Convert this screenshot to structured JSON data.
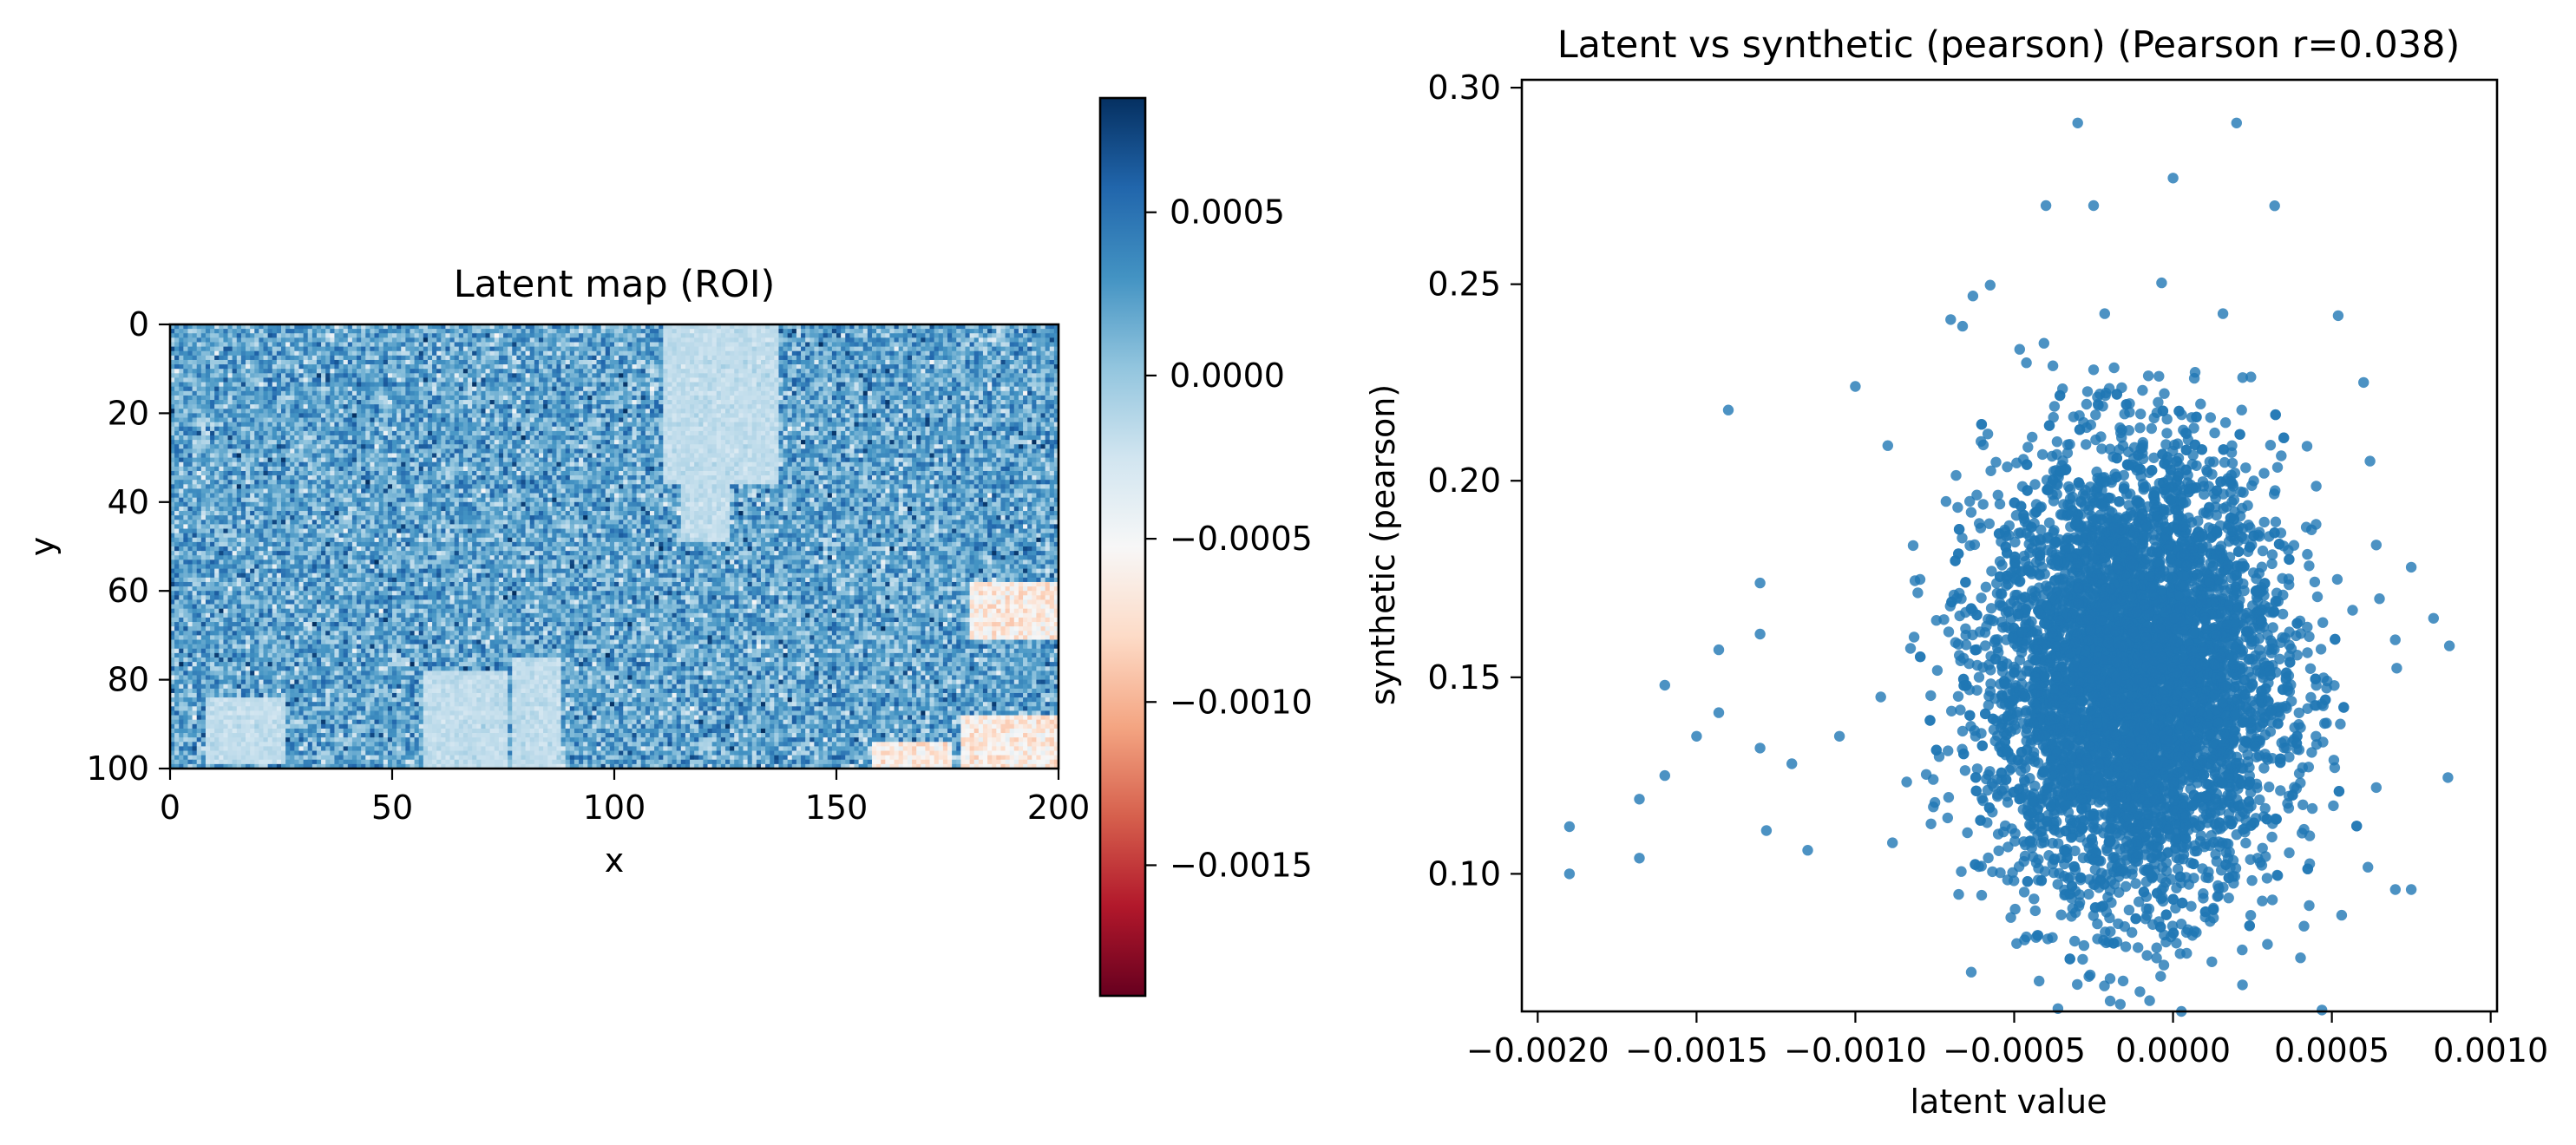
{
  "chart_data": [
    {
      "type": "heatmap",
      "title": "Latent map (ROI)",
      "xlabel": "x",
      "ylabel": "y",
      "xlim": [
        0,
        200
      ],
      "ylim": [
        100,
        0
      ],
      "xticks": [
        "0",
        "50",
        "100",
        "150",
        "200"
      ],
      "yticks": [
        "0",
        "20",
        "40",
        "60",
        "80",
        "100"
      ],
      "grid_size": [
        200,
        100
      ],
      "colormap": "RdBu",
      "value_range": [
        -0.0019,
        0.00085
      ],
      "typical_value": 0.0002,
      "colorbar_ticks": [
        "0.0005",
        "0.0000",
        "−0.0005",
        "−0.0010",
        "−0.0015"
      ],
      "regions": [
        {
          "kind": "near_zero",
          "x": [
            111,
            136
          ],
          "y": [
            0,
            35
          ]
        },
        {
          "kind": "near_zero",
          "x": [
            115,
            125
          ],
          "y": [
            28,
            48
          ]
        },
        {
          "kind": "near_zero",
          "x": [
            77,
            87
          ],
          "y": [
            75,
            100
          ]
        },
        {
          "kind": "near_zero",
          "x": [
            57,
            75
          ],
          "y": [
            78,
            100
          ]
        },
        {
          "kind": "near_zero",
          "x": [
            8,
            25
          ],
          "y": [
            84,
            98
          ]
        },
        {
          "kind": "negative",
          "x": [
            180,
            200
          ],
          "y": [
            58,
            70
          ]
        },
        {
          "kind": "negative",
          "x": [
            178,
            200
          ],
          "y": [
            88,
            100
          ]
        },
        {
          "kind": "negative",
          "x": [
            158,
            175
          ],
          "y": [
            94,
            100
          ]
        }
      ]
    },
    {
      "type": "scatter",
      "title": "Latent vs synthetic (pearson) (Pearson r=0.038)",
      "xlabel": "latent value",
      "ylabel": "synthetic (pearson)",
      "xlim": [
        -0.00205,
        0.00102
      ],
      "ylim": [
        0.065,
        0.302
      ],
      "xticks": [
        "−0.0020",
        "−0.0015",
        "−0.0010",
        "−0.0005",
        "0.0000",
        "0.0005",
        "0.0010"
      ],
      "yticks": [
        "0.10",
        "0.15",
        "0.20",
        "0.25",
        "0.30"
      ],
      "point_color": "#1f77b4",
      "cluster": {
        "x_mean": -0.00012,
        "x_sd": 0.00023,
        "y_mean": 0.15,
        "y_sd": 0.028
      },
      "outliers": [
        [
          -0.0019,
          0.112
        ],
        [
          -0.0019,
          0.1
        ],
        [
          -0.00168,
          0.119
        ],
        [
          -0.00168,
          0.104
        ],
        [
          -0.0016,
          0.148
        ],
        [
          -0.0016,
          0.125
        ],
        [
          -0.0015,
          0.135
        ],
        [
          -0.0014,
          0.218
        ],
        [
          -0.00143,
          0.157
        ],
        [
          -0.00143,
          0.141
        ],
        [
          -0.0013,
          0.174
        ],
        [
          -0.0013,
          0.161
        ],
        [
          -0.0013,
          0.132
        ],
        [
          -0.00128,
          0.111
        ],
        [
          -0.001,
          0.224
        ],
        [
          -0.0012,
          0.128
        ],
        [
          -0.00115,
          0.106
        ],
        [
          -0.00105,
          0.135
        ],
        [
          -0.00092,
          0.145
        ],
        [
          -0.0003,
          0.291
        ],
        [
          0.0002,
          0.291
        ],
        [
          0.0,
          0.277
        ],
        [
          -0.0004,
          0.27
        ],
        [
          -0.00025,
          0.27
        ],
        [
          0.00075,
          0.096
        ],
        [
          0.00087,
          0.158
        ],
        [
          0.00082,
          0.165
        ],
        [
          0.00075,
          0.178
        ],
        [
          0.0007,
          0.096
        ],
        [
          0.00052,
          0.242
        ],
        [
          -0.00063,
          0.247
        ],
        [
          0.00045,
          0.135
        ],
        [
          -0.0007,
          0.241
        ],
        [
          0.00062,
          0.205
        ],
        [
          0.0006,
          0.225
        ],
        [
          0.00065,
          0.17
        ]
      ]
    }
  ]
}
